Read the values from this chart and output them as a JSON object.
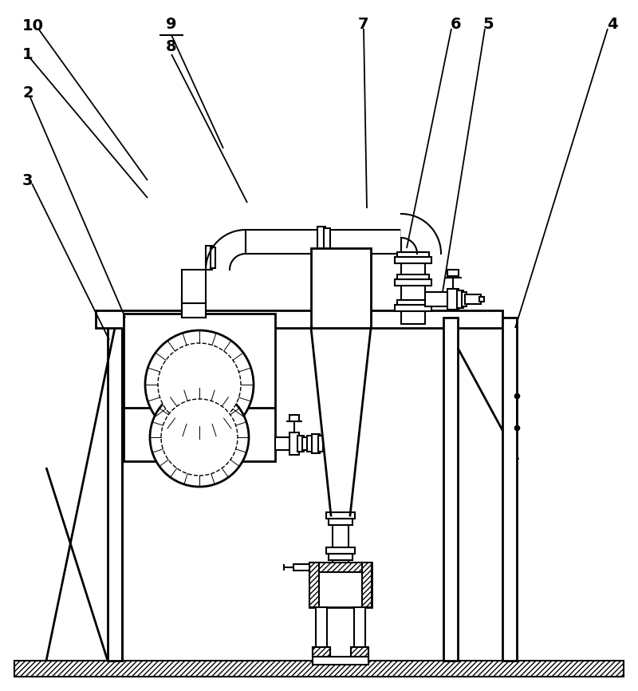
{
  "bg_color": "#ffffff",
  "line_color": "#000000",
  "lw_main": 2.0,
  "lw_detail": 1.5,
  "lw_label": 1.3,
  "label_fontsize": 14,
  "label_fontweight": "bold"
}
